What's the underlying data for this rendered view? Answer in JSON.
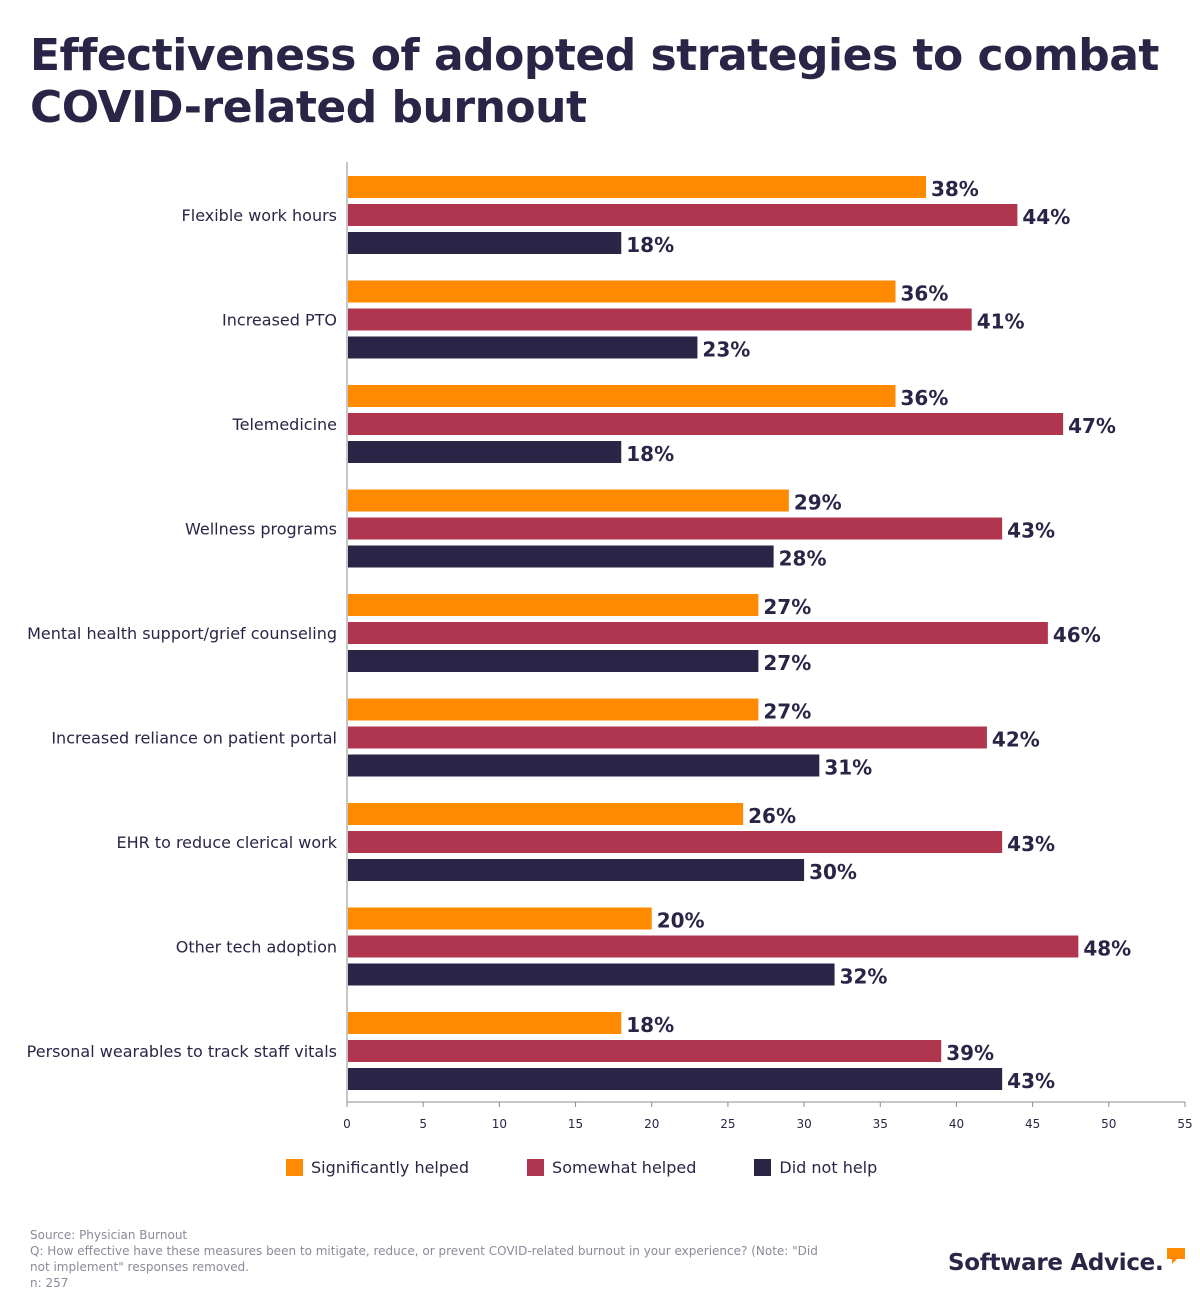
{
  "title": "Effectiveness of adopted strategies to combat COVID-related burnout",
  "colors": {
    "significantly": "#ff8a00",
    "somewhat": "#b0354f",
    "did_not": "#2a2547",
    "axis": "#8c8c8c"
  },
  "chart_data": {
    "type": "bar",
    "orientation": "horizontal",
    "categories": [
      "Flexible work hours",
      "Increased PTO",
      "Telemedicine",
      "Wellness programs",
      "Mental health support/grief counseling",
      "Increased reliance on patient portal",
      "EHR to reduce clerical work",
      "Other tech adoption",
      "Personal wearables to track staff vitals"
    ],
    "series": [
      {
        "name": "Significantly helped",
        "color": "#ff8a00",
        "values": [
          38,
          36,
          36,
          29,
          27,
          27,
          26,
          20,
          18
        ]
      },
      {
        "name": "Somewhat helped",
        "color": "#b0354f",
        "values": [
          44,
          41,
          47,
          43,
          46,
          42,
          43,
          48,
          39
        ]
      },
      {
        "name": "Did not help",
        "color": "#2a2547",
        "values": [
          18,
          23,
          18,
          28,
          27,
          31,
          30,
          32,
          43
        ]
      }
    ],
    "value_suffix": "%",
    "xlim": [
      0,
      55
    ],
    "xticks": [
      0,
      5,
      10,
      15,
      20,
      25,
      30,
      35,
      40,
      45,
      50,
      55
    ],
    "legend_position": "bottom",
    "grid": false
  },
  "legend": {
    "significantly": "Significantly helped",
    "somewhat": "Somewhat helped",
    "did_not": "Did not help"
  },
  "footer": {
    "source": "Source: Physician Burnout",
    "question_line1": "Q: How effective have these measures been to mitigate, reduce, or prevent COVID-related burnout in your experience? (Note: \"Did",
    "question_line2": "not implement\" responses removed.",
    "n": "n: 257"
  },
  "brand": {
    "name": "Software Advice",
    "mark": "."
  }
}
